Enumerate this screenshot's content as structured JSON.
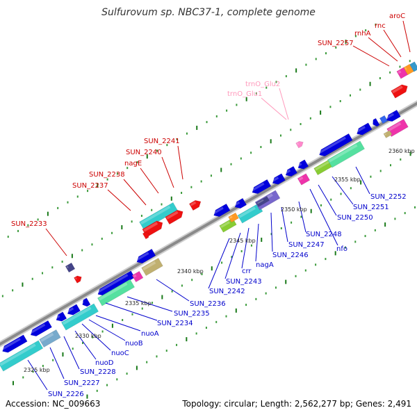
{
  "title": "Sulfurovum sp. NBC37-1, complete genome",
  "footer": {
    "accession": "Accession: NC_009663",
    "summary": "Topology: circular; Length: 2,562,277 bp; Genes: 2,491"
  },
  "colors": {
    "forward_label": "#cc0000",
    "reverse_label": "#0000cc",
    "trna_label": "#ff99bb",
    "backbone": "#888888",
    "tick": "#228822"
  },
  "kbp_labels": [
    "2325 kbp",
    "2330 kbp",
    "2335 kbp",
    "2340 kbp",
    "2345 kbp",
    "2350 kbp",
    "2355 kbp",
    "2360 kbp"
  ],
  "forward_labels": [
    "SUN_2233",
    "SUN_2237",
    "SUN_2238",
    "nagE",
    "SUN_2240",
    "SUN_2241",
    "SUN_2257",
    "rnhA",
    "rnc",
    "aroC"
  ],
  "trna_labels": [
    "trnO_Glu2",
    "trnO_Glu1"
  ],
  "reverse_labels": [
    "SUN_2226",
    "SUN_2227",
    "SUN_2228",
    "nuoD",
    "nuoC",
    "nuoB",
    "nuoA",
    "SUN_2234",
    "SUN_2235",
    "SUN_2236",
    "SUN_2242",
    "SUN_2243",
    "crr",
    "nagA",
    "SUN_2246",
    "SUN_2247",
    "SUN_2248",
    "nfo",
    "SUN_2250",
    "SUN_2251",
    "SUN_2252"
  ]
}
